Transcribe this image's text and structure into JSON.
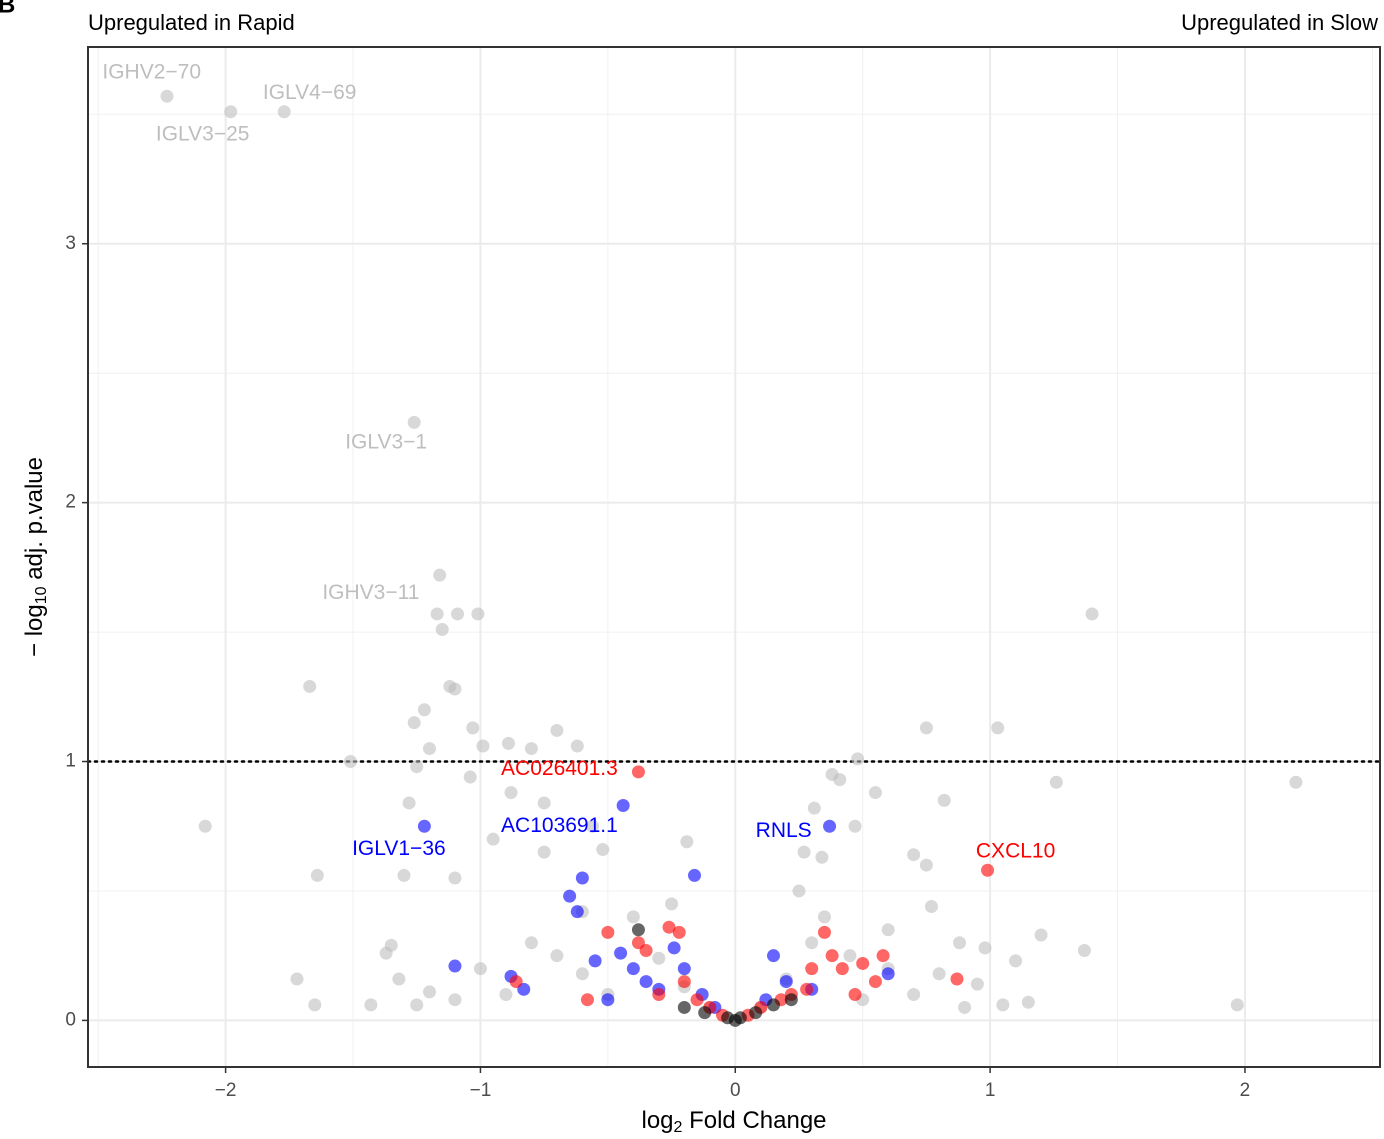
{
  "chart_data": {
    "type": "scatter",
    "panel_label": "B",
    "top_left_label": "Upregulated in Rapid",
    "top_right_label": "Upregulated in Slow",
    "x_label": {
      "prefix": "log",
      "sub": "2",
      "suffix": " Fold Change"
    },
    "y_label": {
      "prefix": "− log",
      "sub": "10",
      "suffix": " adj. p.value"
    },
    "xlim": [
      -2.54,
      2.53
    ],
    "ylim": [
      -0.18,
      3.76
    ],
    "xticks": [
      {
        "value": -2,
        "label": "−2"
      },
      {
        "value": -1,
        "label": "−1"
      },
      0,
      1,
      2
    ],
    "yticks": [
      0,
      1,
      2,
      3
    ],
    "grid": true,
    "hline": 1,
    "alpha": 0.6,
    "series": [
      {
        "color": "#bebebe",
        "x": [
          -2.23,
          -1.98,
          -1.77,
          -1.26,
          -1.16,
          1.4,
          2.2,
          1.97,
          -2.08,
          -1.67,
          -1.64,
          -1.65,
          -1.72,
          -1.51,
          -1.37,
          -1.35,
          -1.28,
          -1.26,
          -1.22,
          -1.2,
          -1.17,
          -1.15,
          -1.12,
          -1.1,
          -1.09,
          -1.01,
          -1.03,
          -0.99,
          -0.89,
          -0.8,
          -0.7,
          -0.62,
          -1.25,
          -1.04,
          -0.88,
          -0.75,
          -0.56,
          -0.52,
          -0.75,
          -0.95,
          -1.3,
          -1.1,
          0.48,
          0.38,
          0.41,
          0.55,
          0.75,
          1.03,
          1.26,
          0.82,
          0.7,
          0.75,
          0.77,
          0.31,
          0.27,
          0.34,
          0.47,
          -0.19,
          1.2,
          1.37,
          1.1,
          1.05,
          1.15,
          0.98,
          0.95,
          -1.43,
          -1.2,
          -1.0,
          -0.8,
          -0.6,
          -0.5,
          -0.3,
          -0.2,
          -0.1,
          0.1,
          0.2,
          0.3,
          0.45,
          0.6,
          0.7,
          0.8,
          0.9,
          0.5,
          -0.9,
          -0.7,
          -1.1,
          -0.4,
          0.35,
          0.25,
          -0.25,
          0.6,
          0.88,
          -0.6,
          -1.32,
          -1.25
        ],
        "y": [
          3.57,
          3.51,
          3.51,
          2.31,
          1.72,
          1.57,
          0.92,
          0.06,
          0.75,
          1.29,
          0.56,
          0.06,
          0.16,
          1.0,
          0.26,
          0.29,
          0.84,
          1.15,
          1.2,
          1.05,
          1.57,
          1.51,
          1.29,
          1.28,
          1.57,
          1.57,
          1.13,
          1.06,
          1.07,
          1.05,
          1.12,
          1.06,
          0.98,
          0.94,
          0.88,
          0.84,
          0.75,
          0.66,
          0.65,
          0.7,
          0.56,
          0.55,
          1.01,
          0.95,
          0.93,
          0.88,
          1.13,
          1.13,
          0.92,
          0.85,
          0.64,
          0.6,
          0.44,
          0.82,
          0.65,
          0.63,
          0.75,
          0.69,
          0.33,
          0.27,
          0.23,
          0.06,
          0.07,
          0.28,
          0.14,
          0.06,
          0.11,
          0.2,
          0.3,
          0.18,
          0.1,
          0.24,
          0.13,
          0.05,
          0.05,
          0.16,
          0.3,
          0.25,
          0.2,
          0.1,
          0.18,
          0.05,
          0.08,
          0.1,
          0.25,
          0.08,
          0.4,
          0.4,
          0.5,
          0.45,
          0.35,
          0.3,
          0.42,
          0.16,
          0.06
        ]
      },
      {
        "color": "#0000ff",
        "x": [
          -1.22,
          -0.44,
          0.37,
          -1.1,
          -0.88,
          -0.83,
          -0.65,
          -0.62,
          -0.6,
          -0.55,
          -0.5,
          -0.45,
          -0.4,
          -0.35,
          -0.3,
          -0.24,
          -0.2,
          -0.16,
          -0.13,
          -0.08,
          0.15,
          0.12,
          0.2,
          0.3,
          0.6
        ],
        "y": [
          0.75,
          0.83,
          0.75,
          0.21,
          0.17,
          0.12,
          0.48,
          0.42,
          0.55,
          0.23,
          0.08,
          0.26,
          0.2,
          0.15,
          0.12,
          0.28,
          0.2,
          0.56,
          0.1,
          0.05,
          0.25,
          0.08,
          0.15,
          0.12,
          0.18
        ]
      },
      {
        "color": "#ff0000",
        "x": [
          -0.38,
          0.99,
          -0.5,
          -0.38,
          -0.26,
          -0.22,
          -0.35,
          -0.2,
          -0.15,
          -0.3,
          -0.1,
          -0.05,
          0.05,
          0.1,
          0.18,
          0.28,
          0.35,
          0.38,
          0.42,
          0.5,
          0.55,
          0.58,
          0.47,
          0.3,
          0.22,
          -0.86,
          -0.58,
          0.87
        ],
        "y": [
          0.96,
          0.58,
          0.34,
          0.3,
          0.36,
          0.34,
          0.27,
          0.15,
          0.08,
          0.1,
          0.05,
          0.02,
          0.02,
          0.05,
          0.08,
          0.12,
          0.34,
          0.25,
          0.2,
          0.22,
          0.15,
          0.25,
          0.1,
          0.2,
          0.1,
          0.15,
          0.08,
          0.16
        ]
      },
      {
        "color": "#000000",
        "x": [
          -0.38,
          -0.2,
          -0.12,
          -0.03,
          0.0,
          0.02,
          0.08,
          0.15,
          0.22
        ],
        "y": [
          0.35,
          0.05,
          0.03,
          0.01,
          0.0,
          0.01,
          0.03,
          0.06,
          0.08
        ]
      }
    ],
    "annotations": [
      {
        "text": "IGHV2−70",
        "x": -2.29,
        "y": 3.66,
        "color": "#bebebe"
      },
      {
        "text": "IGLV3−25",
        "x": -2.09,
        "y": 3.42,
        "color": "#bebebe"
      },
      {
        "text": "IGLV4−69",
        "x": -1.67,
        "y": 3.58,
        "color": "#bebebe"
      },
      {
        "text": "IGLV3−1",
        "x": -1.37,
        "y": 2.23,
        "color": "#bebebe"
      },
      {
        "text": "IGHV3−11",
        "x": -1.43,
        "y": 1.65,
        "color": "#bebebe"
      },
      {
        "text": "IGLV1−36",
        "x": -1.32,
        "y": 0.66,
        "color": "#0000ff"
      },
      {
        "text": "AC103691.1",
        "x": -0.69,
        "y": 0.75,
        "color": "#0000ff"
      },
      {
        "text": "RNLS",
        "x": 0.19,
        "y": 0.73,
        "color": "#0000ff"
      },
      {
        "text": "AC026401.3",
        "x": -0.69,
        "y": 0.97,
        "color": "#ff0000"
      },
      {
        "text": "CXCL10",
        "x": 1.1,
        "y": 0.65,
        "color": "#ff0000"
      }
    ]
  }
}
